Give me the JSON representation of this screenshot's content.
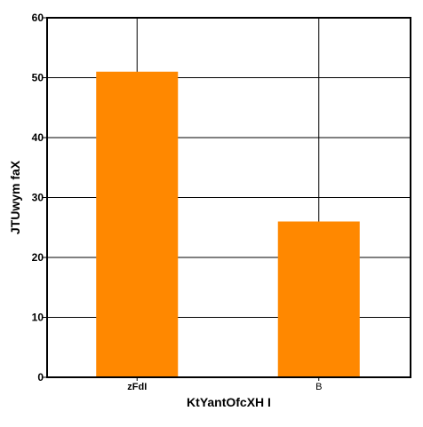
{
  "chart_data": {
    "type": "bar",
    "categories": [
      "zFdI",
      "B"
    ],
    "values": [
      51,
      26
    ],
    "title": "",
    "xlabel": "KtYantOfcXH I",
    "ylabel": "JTUwym faX",
    "ylim": [
      0,
      60
    ],
    "yticks": [
      0,
      10,
      20,
      30,
      40,
      50,
      60
    ],
    "grid": true,
    "legend": "none",
    "colors": {
      "bar": "#ff8800",
      "grid": "#000000",
      "axis": "#000000",
      "background": "#ffffff"
    }
  }
}
